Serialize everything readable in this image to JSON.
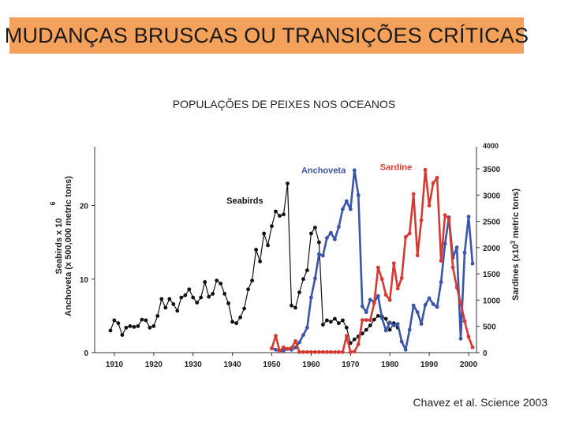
{
  "slide": {
    "title": "MUDANÇAS BRUSCAS OU TRANSIÇÕES CRÍTICAS",
    "subtitle": "POPULAÇÕES DE PEIXES NOS OCEANOS",
    "citation": "Chavez et al. Science 2003",
    "title_bg": "#f4a15c"
  },
  "chart_data": {
    "type": "line",
    "xlim": [
      1905,
      2002
    ],
    "x_ticks": [
      1910,
      1920,
      1930,
      1940,
      1950,
      1960,
      1970,
      1980,
      1990,
      2000
    ],
    "left_axis": {
      "label_lines": [
        "Seabirds x 10",
        "Anchoveta (x 500,000 metric tons)"
      ],
      "superscript": "6",
      "ylim": [
        0,
        28
      ],
      "ticks": [
        0,
        10,
        20
      ]
    },
    "right_axis": {
      "label_main": "Sardines (x10",
      "label_sup": "3",
      "label_rest": " metric tons)",
      "ylim": [
        0,
        3920
      ],
      "ticks": [
        0,
        500,
        1000,
        1500,
        2000,
        2500,
        3000,
        3500
      ],
      "top_tick": "4000"
    },
    "series": [
      {
        "name": "Seabirds",
        "axis": "left",
        "color": "#111111",
        "label_x": 1938.5,
        "label_y": 20.3,
        "points": [
          [
            1909,
            3.0
          ],
          [
            1910,
            4.4
          ],
          [
            1911,
            4.0
          ],
          [
            1912,
            2.4
          ],
          [
            1913,
            3.4
          ],
          [
            1914,
            3.6
          ],
          [
            1915,
            3.5
          ],
          [
            1916,
            3.6
          ],
          [
            1917,
            4.5
          ],
          [
            1918,
            4.4
          ],
          [
            1919,
            3.4
          ],
          [
            1920,
            3.6
          ],
          [
            1921,
            5.0
          ],
          [
            1922,
            7.3
          ],
          [
            1923,
            6.1
          ],
          [
            1924,
            7.3
          ],
          [
            1925,
            6.6
          ],
          [
            1926,
            5.7
          ],
          [
            1927,
            7.5
          ],
          [
            1928,
            7.8
          ],
          [
            1929,
            8.6
          ],
          [
            1930,
            7.5
          ],
          [
            1931,
            6.8
          ],
          [
            1932,
            7.5
          ],
          [
            1933,
            9.6
          ],
          [
            1934,
            7.6
          ],
          [
            1935,
            8.0
          ],
          [
            1936,
            9.8
          ],
          [
            1937,
            9.4
          ],
          [
            1938,
            8.0
          ],
          [
            1939,
            6.7
          ],
          [
            1940,
            4.2
          ],
          [
            1941,
            4.0
          ],
          [
            1942,
            4.8
          ],
          [
            1943,
            6.0
          ],
          [
            1944,
            8.6
          ],
          [
            1945,
            9.8
          ],
          [
            1946,
            14.0
          ],
          [
            1947,
            12.4
          ],
          [
            1948,
            16.2
          ],
          [
            1949,
            14.6
          ],
          [
            1950,
            17.2
          ],
          [
            1951,
            19.2
          ],
          [
            1952,
            18.6
          ],
          [
            1953,
            18.8
          ],
          [
            1954,
            23.0
          ],
          [
            1955,
            6.4
          ],
          [
            1956,
            6.1
          ],
          [
            1957,
            8.2
          ],
          [
            1958,
            10.0
          ],
          [
            1959,
            11.2
          ],
          [
            1960,
            16.2
          ],
          [
            1961,
            17.0
          ],
          [
            1962,
            15.0
          ],
          [
            1963,
            3.8
          ],
          [
            1964,
            4.4
          ],
          [
            1965,
            4.2
          ],
          [
            1966,
            4.6
          ],
          [
            1967,
            4.0
          ],
          [
            1968,
            4.4
          ],
          [
            1969,
            3.4
          ],
          [
            1970,
            1.3
          ],
          [
            1971,
            1.8
          ],
          [
            1972,
            2.2
          ],
          [
            1973,
            2.6
          ],
          [
            1974,
            3.1
          ],
          [
            1975,
            3.7
          ],
          [
            1976,
            4.5
          ],
          [
            1977,
            5.0
          ],
          [
            1978,
            4.9
          ],
          [
            1979,
            4.6
          ],
          [
            1980,
            3.1
          ],
          [
            1981,
            4.0
          ],
          [
            1982,
            3.4
          ]
        ]
      },
      {
        "name": "Anchoveta",
        "axis": "left",
        "color": "#3b55a8",
        "label_x": 1957.5,
        "label_y": 24.4,
        "points": [
          [
            1950,
            0.6
          ],
          [
            1951,
            0.4
          ],
          [
            1952,
            0.2
          ],
          [
            1953,
            0.3
          ],
          [
            1954,
            0.5
          ],
          [
            1955,
            0.4
          ],
          [
            1956,
            0.7
          ],
          [
            1957,
            1.4
          ],
          [
            1958,
            2.4
          ],
          [
            1959,
            3.4
          ],
          [
            1960,
            7.5
          ],
          [
            1961,
            10.1
          ],
          [
            1962,
            13.4
          ],
          [
            1963,
            13.2
          ],
          [
            1964,
            15.6
          ],
          [
            1965,
            16.3
          ],
          [
            1966,
            15.4
          ],
          [
            1967,
            17.1
          ],
          [
            1968,
            19.5
          ],
          [
            1969,
            20.6
          ],
          [
            1970,
            19.5
          ],
          [
            1971,
            24.8
          ],
          [
            1972,
            21.4
          ],
          [
            1973,
            6.3
          ],
          [
            1974,
            5.5
          ],
          [
            1975,
            7.2
          ],
          [
            1976,
            6.9
          ],
          [
            1977,
            7.7
          ],
          [
            1978,
            4.7
          ],
          [
            1979,
            3.0
          ],
          [
            1980,
            4.1
          ],
          [
            1981,
            3.7
          ],
          [
            1982,
            3.9
          ],
          [
            1983,
            1.5
          ],
          [
            1984,
            0.4
          ],
          [
            1985,
            3.1
          ],
          [
            1986,
            6.4
          ],
          [
            1987,
            5.5
          ],
          [
            1988,
            3.9
          ],
          [
            1989,
            6.5
          ],
          [
            1990,
            7.4
          ],
          [
            1991,
            6.6
          ],
          [
            1992,
            6.2
          ],
          [
            1993,
            9.6
          ],
          [
            1994,
            14.8
          ],
          [
            1995,
            18.4
          ],
          [
            1996,
            12.9
          ],
          [
            1997,
            14.3
          ],
          [
            1998,
            1.9
          ],
          [
            1999,
            13.6
          ],
          [
            2000,
            18.5
          ],
          [
            2001,
            12.1
          ]
        ]
      },
      {
        "name": "Sardine",
        "axis": "right",
        "color": "#d63a32",
        "label_x": 1977.5,
        "label_y": 3480,
        "points": [
          [
            1950,
            80
          ],
          [
            1951,
            320
          ],
          [
            1952,
            30
          ],
          [
            1953,
            100
          ],
          [
            1954,
            70
          ],
          [
            1955,
            90
          ],
          [
            1956,
            220
          ],
          [
            1957,
            10
          ],
          [
            1958,
            10
          ],
          [
            1959,
            10
          ],
          [
            1960,
            10
          ],
          [
            1961,
            10
          ],
          [
            1962,
            10
          ],
          [
            1963,
            10
          ],
          [
            1964,
            10
          ],
          [
            1965,
            10
          ],
          [
            1966,
            10
          ],
          [
            1967,
            10
          ],
          [
            1968,
            10
          ],
          [
            1969,
            320
          ],
          [
            1970,
            10
          ],
          [
            1971,
            20
          ],
          [
            1972,
            160
          ],
          [
            1973,
            620
          ],
          [
            1974,
            620
          ],
          [
            1975,
            620
          ],
          [
            1976,
            940
          ],
          [
            1977,
            1620
          ],
          [
            1978,
            1400
          ],
          [
            1979,
            1100
          ],
          [
            1980,
            1000
          ],
          [
            1981,
            1700
          ],
          [
            1982,
            1220
          ],
          [
            1983,
            1420
          ],
          [
            1984,
            2200
          ],
          [
            1985,
            2270
          ],
          [
            1986,
            3020
          ],
          [
            1987,
            1850
          ],
          [
            1988,
            2520
          ],
          [
            1989,
            3480
          ],
          [
            1990,
            2800
          ],
          [
            1991,
            3230
          ],
          [
            1992,
            3330
          ],
          [
            1993,
            1750
          ],
          [
            1994,
            2620
          ],
          [
            1995,
            2550
          ],
          [
            1996,
            1620
          ],
          [
            1997,
            1240
          ],
          [
            1998,
            950
          ],
          [
            1999,
            600
          ],
          [
            2000,
            300
          ],
          [
            2001,
            100
          ]
        ]
      }
    ]
  }
}
